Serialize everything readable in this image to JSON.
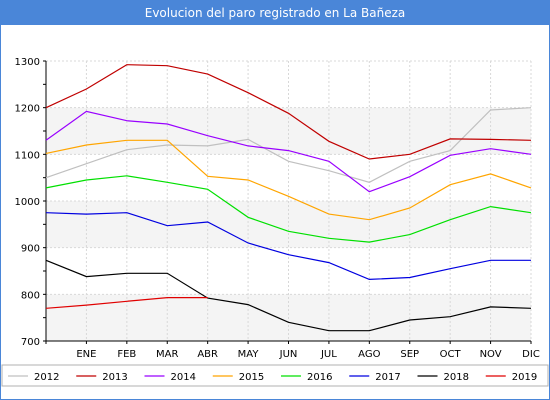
{
  "chart_data": {
    "type": "line",
    "title": "Evolucion del paro registrado en La Bañeza",
    "xlabel": "",
    "ylabel": "",
    "x": [
      "",
      "ENE",
      "FEB",
      "MAR",
      "ABR",
      "MAY",
      "JUN",
      "JUL",
      "AGO",
      "SEP",
      "OCT",
      "NOV",
      "DIC"
    ],
    "ylim": [
      700,
      1300
    ],
    "yticks": [
      700,
      800,
      900,
      1000,
      1100,
      1200,
      1300
    ],
    "grid": true,
    "legend_position": "bottom",
    "series": [
      {
        "name": "2012",
        "color": "#c0c0c0",
        "values": [
          1050,
          1080,
          1110,
          1120,
          1118,
          1132,
          1085,
          1065,
          1040,
          1085,
          1108,
          1195,
          1200
        ]
      },
      {
        "name": "2013",
        "color": "#c00000",
        "values": [
          1200,
          1240,
          1292,
          1290,
          1272,
          1232,
          1188,
          1128,
          1090,
          1100,
          1133,
          1132,
          1130
        ]
      },
      {
        "name": "2014",
        "color": "#9900ff",
        "values": [
          1130,
          1192,
          1172,
          1165,
          1140,
          1118,
          1108,
          1085,
          1020,
          1052,
          1098,
          1112,
          1100
        ]
      },
      {
        "name": "2015",
        "color": "#ffa500",
        "values": [
          1102,
          1120,
          1130,
          1130,
          1053,
          1045,
          1010,
          972,
          960,
          985,
          1035,
          1058,
          1028
        ]
      },
      {
        "name": "2016",
        "color": "#00e000",
        "values": [
          1028,
          1045,
          1054,
          1040,
          1025,
          965,
          935,
          920,
          912,
          928,
          960,
          988,
          975
        ]
      },
      {
        "name": "2017",
        "color": "#0000e0",
        "values": [
          975,
          972,
          975,
          947,
          955,
          910,
          885,
          868,
          832,
          836,
          855,
          873,
          873
        ]
      },
      {
        "name": "2018",
        "color": "#000000",
        "values": [
          873,
          838,
          845,
          845,
          792,
          778,
          740,
          722,
          722,
          745,
          752,
          773,
          770
        ]
      },
      {
        "name": "2019",
        "color": "#e00000",
        "values": [
          770,
          777,
          785,
          793,
          793,
          null,
          null,
          null,
          null,
          null,
          null,
          null,
          null
        ]
      }
    ]
  }
}
